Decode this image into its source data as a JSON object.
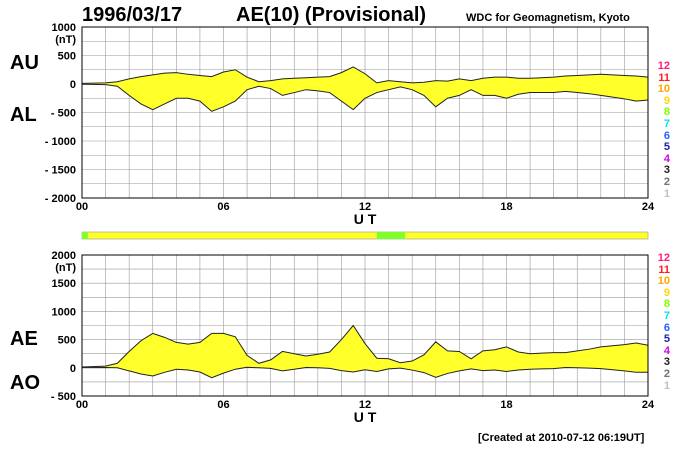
{
  "header": {
    "date": "1996/03/17",
    "title": "AE(10) (Provisional)",
    "source": "WDC for Geomagnetism, Kyoto"
  },
  "footer": {
    "created": "[Created at 2010-07-12 06:19UT]"
  },
  "panels": {
    "top": {
      "label_upper": "AU",
      "label_lower": "AL",
      "unit": "(nT)"
    },
    "bottom": {
      "label_upper": "AE",
      "label_lower": "AO",
      "unit": "(nT)"
    }
  },
  "legend": {
    "items": [
      {
        "label": "12",
        "color": "#ff1f7a"
      },
      {
        "label": "11",
        "color": "#ff2020"
      },
      {
        "label": "10",
        "color": "#ffa500"
      },
      {
        "label": "9",
        "color": "#ffd700"
      },
      {
        "label": "8",
        "color": "#7fff00"
      },
      {
        "label": "7",
        "color": "#00e5ee"
      },
      {
        "label": "6",
        "color": "#1e64ff"
      },
      {
        "label": "5",
        "color": "#2020b0"
      },
      {
        "label": "4",
        "color": "#e000e0"
      },
      {
        "label": "3",
        "color": "#202020"
      },
      {
        "label": "2",
        "color": "#707070"
      },
      {
        "label": "1",
        "color": "#c0c0c0"
      }
    ]
  },
  "colors": {
    "fill": "#ffff2a",
    "station_bar": "#ffff2a",
    "station_highlight": "#7fff2a",
    "grid": "#999999"
  },
  "chart_data": [
    {
      "type": "area",
      "title": "",
      "xlabel": "U T",
      "ylabel": "(nT)",
      "x_ticks": [
        "00",
        "06",
        "12",
        "18",
        "24"
      ],
      "xlim": [
        0,
        24
      ],
      "ylim": [
        -2000,
        1000
      ],
      "y_ticks": [
        1000,
        500,
        0,
        -500,
        -1000,
        -1500,
        -2000
      ],
      "y_tick_labels": [
        "1000",
        "500",
        "0",
        "- 500",
        "- 1000",
        "- 1500",
        "- 2000"
      ],
      "grid": true,
      "x": [
        0,
        1,
        1.5,
        2,
        2.5,
        3,
        3.5,
        4,
        4.5,
        5,
        5.5,
        6,
        6.5,
        7,
        7.5,
        8,
        8.5,
        9,
        9.5,
        10,
        10.5,
        11,
        11.5,
        12,
        12.5,
        13,
        13.5,
        14,
        14.5,
        15,
        15.5,
        16,
        16.5,
        17,
        17.5,
        18,
        18.5,
        19,
        19.5,
        20,
        20.5,
        21,
        21.5,
        22,
        22.5,
        23,
        23.5,
        24
      ],
      "series": [
        {
          "name": "AU",
          "values": [
            10,
            20,
            40,
            90,
            130,
            160,
            190,
            200,
            170,
            150,
            130,
            210,
            250,
            120,
            40,
            60,
            90,
            100,
            110,
            120,
            130,
            200,
            300,
            180,
            20,
            60,
            40,
            20,
            30,
            60,
            50,
            90,
            60,
            100,
            120,
            120,
            100,
            100,
            110,
            120,
            140,
            150,
            160,
            170,
            160,
            150,
            140,
            120
          ]
        },
        {
          "name": "AL",
          "values": [
            -5,
            -10,
            -40,
            -200,
            -350,
            -450,
            -350,
            -250,
            -250,
            -300,
            -480,
            -400,
            -300,
            -100,
            -40,
            -80,
            -200,
            -150,
            -100,
            -120,
            -150,
            -300,
            -450,
            -250,
            -150,
            -100,
            -50,
            -100,
            -200,
            -400,
            -250,
            -200,
            -100,
            -200,
            -200,
            -250,
            -180,
            -150,
            -150,
            -150,
            -130,
            -150,
            -170,
            -200,
            -230,
            -260,
            -300,
            -280
          ]
        }
      ]
    },
    {
      "type": "area",
      "title": "",
      "xlabel": "U T",
      "ylabel": "(nT)",
      "x_ticks": [
        "00",
        "06",
        "12",
        "18",
        "24"
      ],
      "xlim": [
        0,
        24
      ],
      "ylim": [
        -500,
        2000
      ],
      "y_ticks": [
        2000,
        1500,
        1000,
        500,
        0,
        -500
      ],
      "y_tick_labels": [
        "2000",
        "1500",
        "1000",
        "500",
        "0",
        "- 500"
      ],
      "grid": true,
      "x": [
        0,
        1,
        1.5,
        2,
        2.5,
        3,
        3.5,
        4,
        4.5,
        5,
        5.5,
        6,
        6.5,
        7,
        7.5,
        8,
        8.5,
        9,
        9.5,
        10,
        10.5,
        11,
        11.5,
        12,
        12.5,
        13,
        13.5,
        14,
        14.5,
        15,
        15.5,
        16,
        16.5,
        17,
        17.5,
        18,
        18.5,
        19,
        19.5,
        20,
        20.5,
        21,
        21.5,
        22,
        22.5,
        23,
        23.5,
        24
      ],
      "series": [
        {
          "name": "AE",
          "values": [
            15,
            30,
            80,
            290,
            480,
            610,
            540,
            450,
            420,
            450,
            610,
            610,
            550,
            220,
            80,
            140,
            290,
            250,
            210,
            240,
            280,
            500,
            750,
            430,
            170,
            160,
            90,
            120,
            230,
            460,
            300,
            290,
            160,
            300,
            320,
            370,
            280,
            250,
            260,
            270,
            270,
            300,
            330,
            370,
            390,
            410,
            440,
            400
          ]
        },
        {
          "name": "AO",
          "values": [
            2,
            5,
            0,
            -55,
            -110,
            -145,
            -80,
            -25,
            -40,
            -75,
            -175,
            -95,
            -25,
            10,
            0,
            -10,
            -55,
            -25,
            5,
            0,
            -10,
            -50,
            -75,
            -35,
            -65,
            -20,
            -5,
            -40,
            -85,
            -170,
            -100,
            -55,
            -20,
            -50,
            -40,
            -65,
            -40,
            -25,
            -20,
            -15,
            5,
            0,
            -5,
            -15,
            -35,
            -55,
            -80,
            -80
          ]
        }
      ]
    }
  ]
}
